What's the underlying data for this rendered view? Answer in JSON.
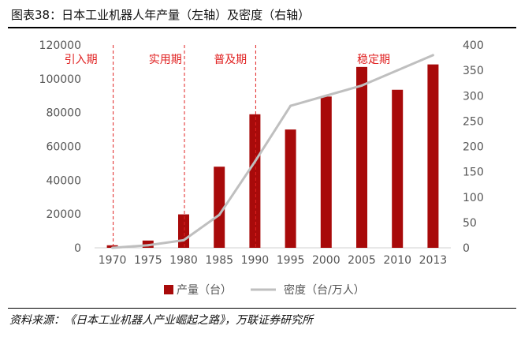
{
  "figure": {
    "title": "图表38：日本工业机器人年产量（左轴）及密度（右轴）",
    "source": "资料来源：《日本工业机器人产业崛起之路》，万联证券研究所"
  },
  "colors": {
    "bar": "#a80a0a",
    "line": "#bfbfbf",
    "phase": "#e02020",
    "axis_text": "#555555"
  },
  "chart_data": {
    "type": "bar+line",
    "title": "日本工业机器人年产量（左轴）及密度（右轴）",
    "categories": [
      "1970",
      "1975",
      "1980",
      "1985",
      "1990",
      "1995",
      "2000",
      "2005",
      "2010",
      "2013"
    ],
    "series": [
      {
        "name": "产量（台）",
        "type": "bar",
        "axis": "left",
        "values": [
          1500,
          4300,
          19800,
          48000,
          79000,
          70000,
          89500,
          107000,
          93500,
          108500
        ]
      },
      {
        "name": "密度（台/万人）",
        "type": "line",
        "axis": "right",
        "values": [
          0,
          5,
          15,
          65,
          170,
          280,
          300,
          320,
          350,
          380
        ]
      }
    ],
    "y_left": {
      "min": 0,
      "max": 120000,
      "ticks": [
        "0",
        "20000",
        "40000",
        "60000",
        "80000",
        "100000",
        "120000"
      ]
    },
    "y_right": {
      "min": 0,
      "max": 400,
      "ticks": [
        "0",
        "50",
        "100",
        "150",
        "200",
        "250",
        "300",
        "350",
        "400"
      ]
    },
    "phases": [
      {
        "label": "引入期",
        "category": "1970"
      },
      {
        "label": "实用期",
        "category": "1975"
      },
      {
        "label": "普及期",
        "category": "1985"
      },
      {
        "label": "稳定期",
        "category": "2005"
      }
    ],
    "phase_dividers": [
      "1970",
      "1980",
      "1990"
    ],
    "grid": false,
    "legend": "bottom"
  }
}
